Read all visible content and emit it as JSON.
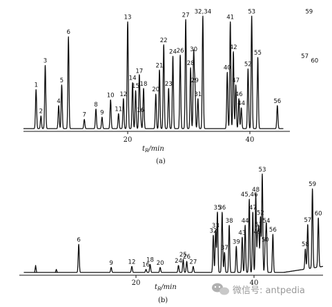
{
  "chart_data": [
    {
      "type": "line",
      "panel_label": "(a)",
      "xlabel": "t_R/min",
      "xticks": [
        20,
        40
      ],
      "x_range": [
        1,
        53
      ],
      "peaks": [
        {
          "label": "1",
          "x": 5.0,
          "h": 0.34
        },
        {
          "label": "2",
          "x": 5.8,
          "h": 0.11
        },
        {
          "label": "3",
          "x": 6.5,
          "h": 0.55
        },
        {
          "label": "4",
          "x": 8.7,
          "h": 0.2
        },
        {
          "label": "5",
          "x": 9.2,
          "h": 0.38
        },
        {
          "label": "6",
          "x": 10.3,
          "h": 0.8
        },
        {
          "label": "7",
          "x": 12.9,
          "h": 0.08
        },
        {
          "label": "8",
          "x": 14.8,
          "h": 0.17
        },
        {
          "label": "9",
          "x": 15.8,
          "h": 0.1
        },
        {
          "label": "10",
          "x": 17.2,
          "h": 0.25
        },
        {
          "label": "11",
          "x": 18.5,
          "h": 0.13
        },
        {
          "label": "12",
          "x": 19.3,
          "h": 0.26
        },
        {
          "label": "13",
          "x": 20.0,
          "h": 0.93
        },
        {
          "label": "14",
          "x": 20.8,
          "h": 0.4
        },
        {
          "label": "15",
          "x": 21.3,
          "h": 0.33
        },
        {
          "label": "16",
          "x": 22.1,
          "h": 0.12
        },
        {
          "label": "17",
          "x": 21.9,
          "h": 0.46
        },
        {
          "label": "18",
          "x": 22.6,
          "h": 0.35
        },
        {
          "label": "20",
          "x": 24.6,
          "h": 0.3
        },
        {
          "label": "21",
          "x": 25.2,
          "h": 0.51
        },
        {
          "label": "22",
          "x": 25.9,
          "h": 0.73
        },
        {
          "label": "23",
          "x": 26.7,
          "h": 0.35
        },
        {
          "label": "24",
          "x": 27.4,
          "h": 0.63
        },
        {
          "label": "26",
          "x": 28.6,
          "h": 0.64
        },
        {
          "label": "27",
          "x": 29.5,
          "h": 0.95
        },
        {
          "label": "28",
          "x": 30.3,
          "h": 0.53
        },
        {
          "label": "29",
          "x": 31.0,
          "h": 0.38
        },
        {
          "label": "30",
          "x": 30.8,
          "h": 0.65
        },
        {
          "label": "31",
          "x": 31.5,
          "h": 0.26
        },
        {
          "label": "32,34",
          "x": 32.3,
          "h": 0.98
        },
        {
          "label": "40",
          "x": 36.3,
          "h": 0.49
        },
        {
          "label": "41",
          "x": 36.8,
          "h": 0.93
        },
        {
          "label": "42",
          "x": 37.3,
          "h": 0.67
        },
        {
          "label": "44",
          "x": 38.6,
          "h": 0.18
        },
        {
          "label": "46",
          "x": 38.2,
          "h": 0.26
        },
        {
          "label": "47",
          "x": 37.7,
          "h": 0.38
        },
        {
          "label": "52",
          "x": 39.7,
          "h": 0.52
        },
        {
          "label": "53",
          "x": 40.3,
          "h": 0.98
        },
        {
          "label": "55",
          "x": 41.3,
          "h": 0.62
        },
        {
          "label": "56",
          "x": 44.5,
          "h": 0.2
        },
        {
          "label": "57",
          "x": 49.0,
          "h": 0.59
        },
        {
          "label": "59",
          "x": 49.7,
          "h": 0.98
        },
        {
          "label": "60",
          "x": 50.6,
          "h": 0.55
        }
      ]
    },
    {
      "type": "line",
      "panel_label": "(b)",
      "xlabel": "t_R/min",
      "xticks": [
        20,
        40
      ],
      "x_range": [
        1,
        53
      ],
      "peaks": [
        {
          "label": "6",
          "x": 10.3,
          "h": 0.28
        },
        {
          "label": "9",
          "x": 15.8,
          "h": 0.05
        },
        {
          "label": "12",
          "x": 19.3,
          "h": 0.06
        },
        {
          "label": "16",
          "x": 21.7,
          "h": 0.03
        },
        {
          "label": "18",
          "x": 22.4,
          "h": 0.08
        },
        {
          "label": "20",
          "x": 24.1,
          "h": 0.05
        },
        {
          "label": "24",
          "x": 27.2,
          "h": 0.07
        },
        {
          "label": "25",
          "x": 28.0,
          "h": 0.13
        },
        {
          "label": "26",
          "x": 28.6,
          "h": 0.11
        },
        {
          "label": "27",
          "x": 29.7,
          "h": 0.06
        },
        {
          "label": "32",
          "x": 33.1,
          "h": 0.37
        },
        {
          "label": "33",
          "x": 33.5,
          "h": 0.42
        },
        {
          "label": "35",
          "x": 33.8,
          "h": 0.6
        },
        {
          "label": "36",
          "x": 34.6,
          "h": 0.6
        },
        {
          "label": "37",
          "x": 35.0,
          "h": 0.2
        },
        {
          "label": "38",
          "x": 35.8,
          "h": 0.47
        },
        {
          "label": "39",
          "x": 37.0,
          "h": 0.26
        },
        {
          "label": "43",
          "x": 38.0,
          "h": 0.35
        },
        {
          "label": "44",
          "x": 38.5,
          "h": 0.47
        },
        {
          "label": "45,46",
          "x": 39.2,
          "h": 0.73
        },
        {
          "label": "47",
          "x": 39.8,
          "h": 0.6
        },
        {
          "label": "48",
          "x": 40.3,
          "h": 0.78
        },
        {
          "label": "49",
          "x": 40.6,
          "h": 0.36
        },
        {
          "label": "50",
          "x": 41.9,
          "h": 0.28
        },
        {
          "label": "51",
          "x": 40.8,
          "h": 0.43
        },
        {
          "label": "52",
          "x": 41.1,
          "h": 0.55
        },
        {
          "label": "53",
          "x": 41.4,
          "h": 0.98
        },
        {
          "label": "54",
          "x": 42.1,
          "h": 0.47
        },
        {
          "label": "56",
          "x": 43.2,
          "h": 0.38
        },
        {
          "label": "57",
          "x": 49.1,
          "h": 0.44
        },
        {
          "label": "58",
          "x": 48.7,
          "h": 0.2
        },
        {
          "label": "59",
          "x": 49.9,
          "h": 0.79
        },
        {
          "label": "60",
          "x": 50.9,
          "h": 0.49
        }
      ]
    }
  ],
  "watermark": {
    "text": "微信号: antpedia",
    "icon": "wechat-bubble-icon"
  }
}
